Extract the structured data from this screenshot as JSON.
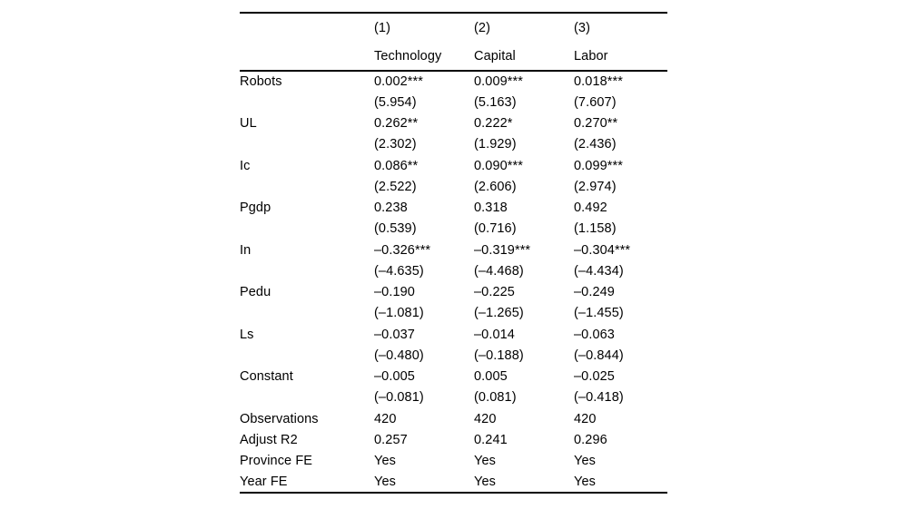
{
  "page": {
    "background": "#ffffff",
    "text_color": "#000000",
    "rule_color": "#000000"
  },
  "table": {
    "header": {
      "corner": "",
      "model_numbers": [
        "(1)",
        "(2)",
        "(3)"
      ],
      "model_names": [
        "Technology",
        "Capital",
        "Labor"
      ]
    },
    "rows": [
      {
        "label": "Robots",
        "c1": "0.002***",
        "c2": "0.009***",
        "c3": "0.018***"
      },
      {
        "label": "",
        "c1": "(5.954)",
        "c2": "(5.163)",
        "c3": "(7.607)"
      },
      {
        "label": "UL",
        "c1": "0.262**",
        "c2": "0.222*",
        "c3": "0.270**"
      },
      {
        "label": "",
        "c1": "(2.302)",
        "c2": "(1.929)",
        "c3": "(2.436)"
      },
      {
        "label": "Ic",
        "c1": "0.086**",
        "c2": "0.090***",
        "c3": "0.099***"
      },
      {
        "label": "",
        "c1": "(2.522)",
        "c2": "(2.606)",
        "c3": "(2.974)"
      },
      {
        "label": "Pgdp",
        "c1": "0.238",
        "c2": "0.318",
        "c3": "0.492"
      },
      {
        "label": "",
        "c1": "(0.539)",
        "c2": "(0.716)",
        "c3": "(1.158)"
      },
      {
        "label": "In",
        "c1": "–0.326***",
        "c2": "–0.319***",
        "c3": "–0.304***"
      },
      {
        "label": "",
        "c1": "(–4.635)",
        "c2": "(–4.468)",
        "c3": "(–4.434)"
      },
      {
        "label": "Pedu",
        "c1": "–0.190",
        "c2": "–0.225",
        "c3": "–0.249"
      },
      {
        "label": "",
        "c1": "(–1.081)",
        "c2": "(–1.265)",
        "c3": "(–1.455)"
      },
      {
        "label": "Ls",
        "c1": "–0.037",
        "c2": "–0.014",
        "c3": "–0.063"
      },
      {
        "label": "",
        "c1": "(–0.480)",
        "c2": "(–0.188)",
        "c3": "(–0.844)"
      },
      {
        "label": "Constant",
        "c1": "–0.005",
        "c2": "0.005",
        "c3": "–0.025"
      },
      {
        "label": "",
        "c1": "(–0.081)",
        "c2": "(0.081)",
        "c3": "(–0.418)"
      },
      {
        "label": "Observations",
        "c1": "420",
        "c2": "420",
        "c3": "420"
      },
      {
        "label": "Adjust R2",
        "c1": "0.257",
        "c2": "0.241",
        "c3": "0.296"
      },
      {
        "label": "Province FE",
        "c1": "Yes",
        "c2": "Yes",
        "c3": "Yes"
      },
      {
        "label": "Year FE",
        "c1": "Yes",
        "c2": "Yes",
        "c3": "Yes"
      }
    ]
  }
}
